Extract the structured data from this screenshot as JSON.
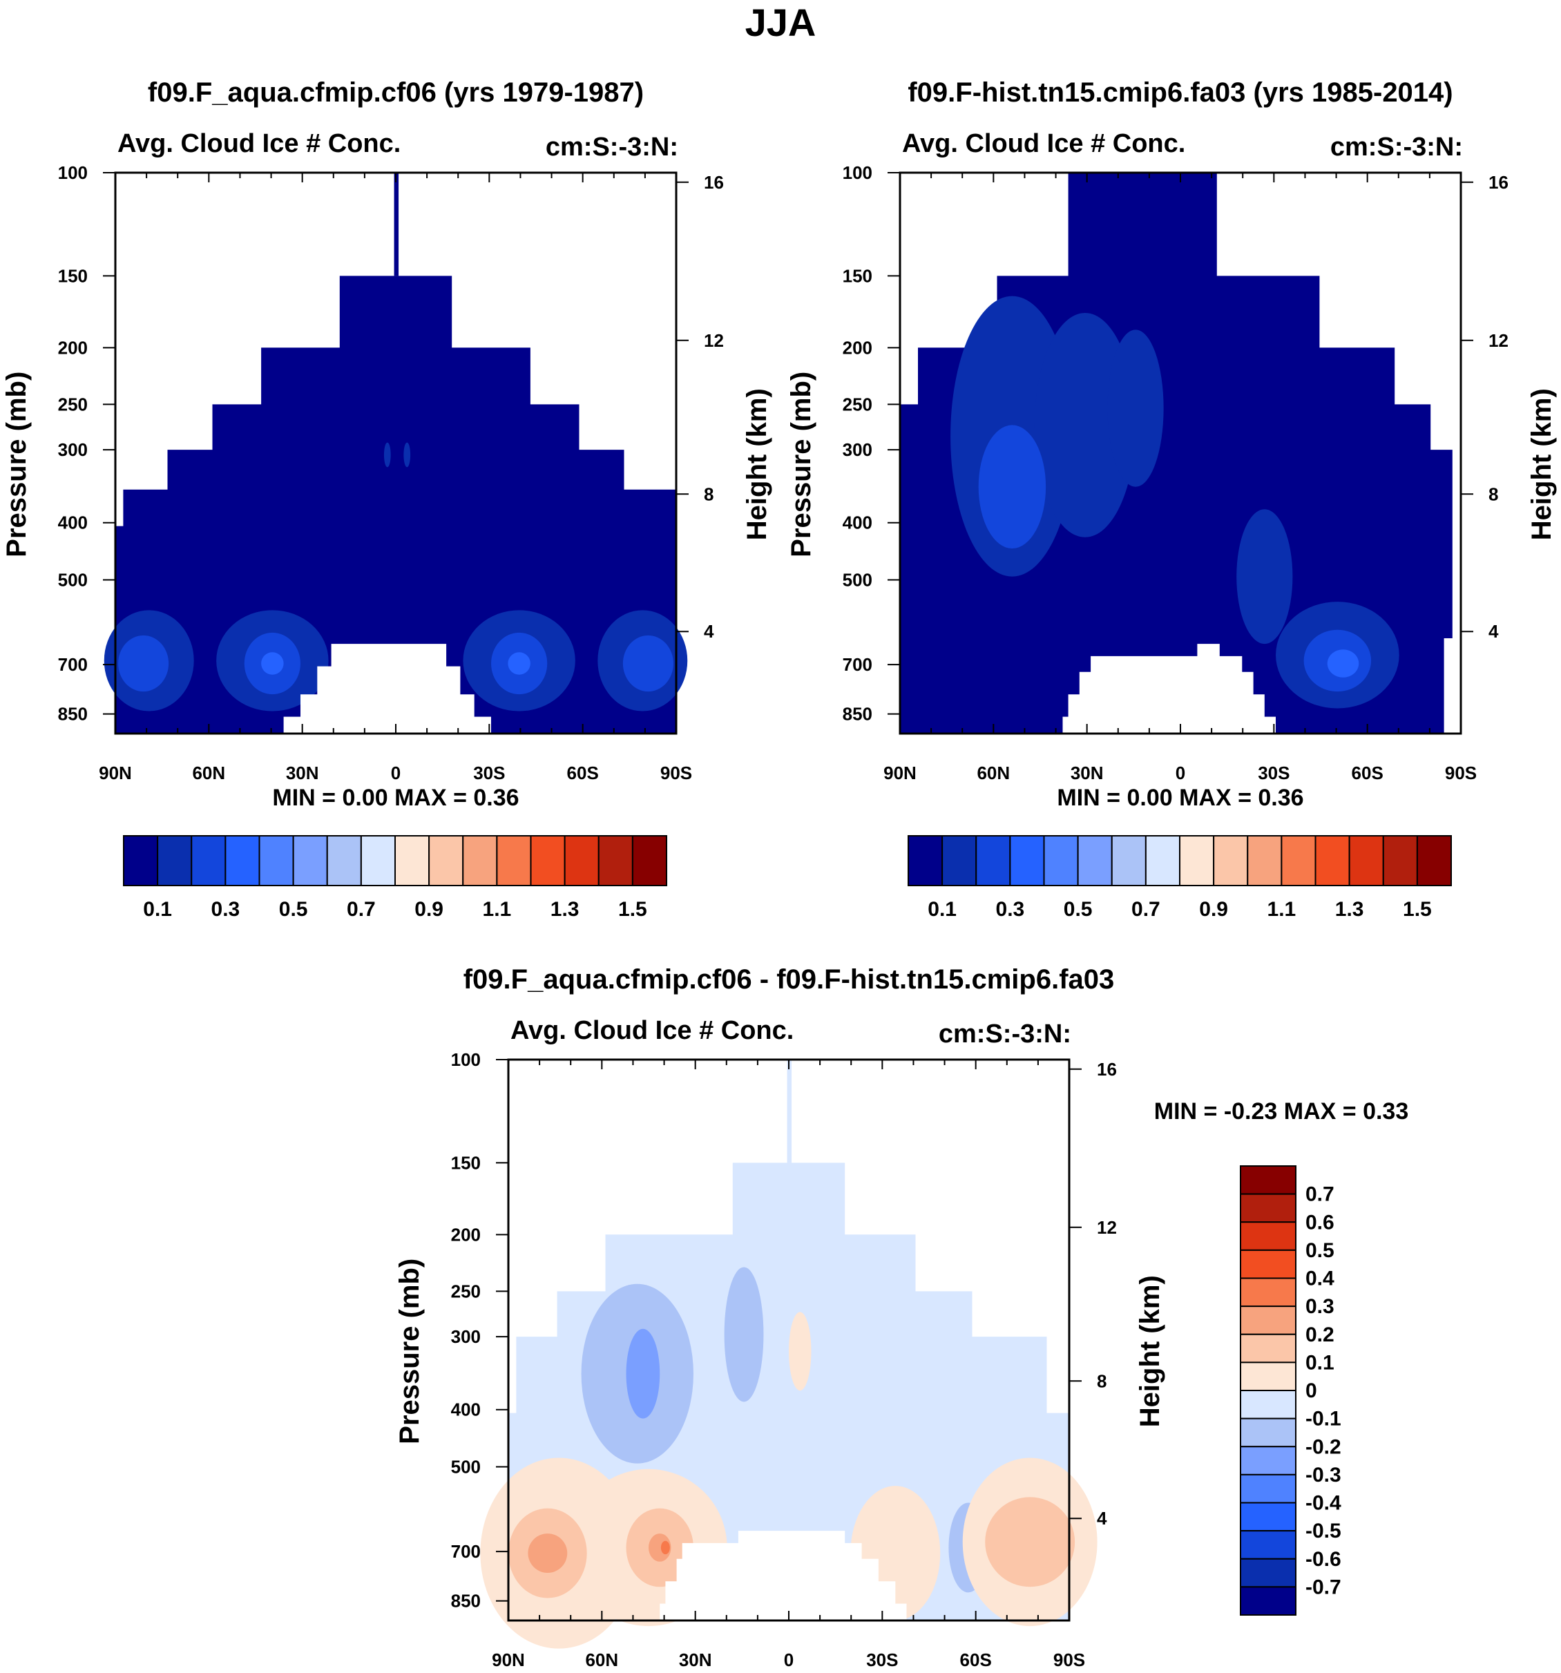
{
  "page": {
    "title": "JJA"
  },
  "colors": {
    "seq": [
      "#00008a",
      "#0a2fae",
      "#1346dc",
      "#2562ff",
      "#4f82ff",
      "#7a9fff",
      "#abc3f7",
      "#d8e7ff",
      "#fde6d5",
      "#fbc6a9",
      "#f7a37e",
      "#f7794b",
      "#f24e21",
      "#dd3412",
      "#b11f0d",
      "#870000"
    ],
    "diff": [
      "#00008a",
      "#0a2fae",
      "#1346dc",
      "#2562ff",
      "#4f82ff",
      "#7a9fff",
      "#abc3f7",
      "#d8e7ff",
      "#fde6d5",
      "#fbc6a9",
      "#f7a37e",
      "#f7794b",
      "#f24e21",
      "#dd3412",
      "#b11f0d",
      "#870000"
    ]
  },
  "chart_data": [
    {
      "type": "heatmap",
      "title": "f09.F_aqua.cfmip.cf06 (yrs 1979-1987)",
      "left_label": "Avg. Cloud Ice # Conc.",
      "right_label": "cm:S:-3:N:",
      "ylabel": "Pressure (mb)",
      "y2label": "Height (km)",
      "x_ticks": [
        "90N",
        "60N",
        "30N",
        "0",
        "30S",
        "60S",
        "90S"
      ],
      "y_ticks": [
        "100",
        "150",
        "200",
        "250",
        "300",
        "400",
        "500",
        "700",
        "850"
      ],
      "y2_ticks": [
        "16",
        "12",
        "8",
        "4"
      ],
      "min_max": "MIN =   0.00   MAX =   0.36",
      "colorbar": {
        "orientation": "horizontal",
        "labels": [
          "0.1",
          "0.3",
          "0.5",
          "0.7",
          "0.9",
          "1.1",
          "1.3",
          "1.5"
        ]
      }
    },
    {
      "type": "heatmap",
      "title": "f09.F-hist.tn15.cmip6.fa03 (yrs 1985-2014)",
      "left_label": "Avg. Cloud Ice # Conc.",
      "right_label": "cm:S:-3:N:",
      "ylabel": "Pressure (mb)",
      "y2label": "Height (km)",
      "x_ticks": [
        "90N",
        "60N",
        "30N",
        "0",
        "30S",
        "60S",
        "90S"
      ],
      "y_ticks": [
        "100",
        "150",
        "200",
        "250",
        "300",
        "400",
        "500",
        "700",
        "850"
      ],
      "y2_ticks": [
        "16",
        "12",
        "8",
        "4"
      ],
      "min_max": "MIN =   0.00   MAX =   0.36",
      "colorbar": {
        "orientation": "horizontal",
        "labels": [
          "0.1",
          "0.3",
          "0.5",
          "0.7",
          "0.9",
          "1.1",
          "1.3",
          "1.5"
        ]
      }
    },
    {
      "type": "heatmap",
      "title": "f09.F_aqua.cfmip.cf06 - f09.F-hist.tn15.cmip6.fa03",
      "left_label": "Avg. Cloud Ice # Conc.",
      "right_label": "cm:S:-3:N:",
      "ylabel": "Pressure (mb)",
      "y2label": "Height (km)",
      "x_ticks": [
        "90N",
        "60N",
        "30N",
        "0",
        "30S",
        "60S",
        "90S"
      ],
      "y_ticks": [
        "100",
        "150",
        "200",
        "250",
        "300",
        "400",
        "500",
        "700",
        "850"
      ],
      "y2_ticks": [
        "16",
        "12",
        "8",
        "4"
      ],
      "min_max": "MIN =  -0.23   MAX =   0.33",
      "colorbar": {
        "orientation": "vertical",
        "labels": [
          "0.7",
          "0.6",
          "0.5",
          "0.4",
          "0.3",
          "0.2",
          "0.1",
          "0",
          "-0.1",
          "-0.2",
          "-0.3",
          "-0.4",
          "-0.5",
          "-0.6",
          "-0.7"
        ]
      }
    }
  ]
}
